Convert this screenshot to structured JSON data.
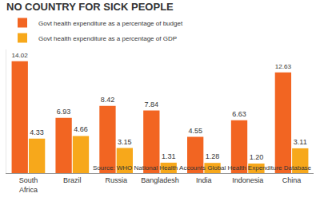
{
  "chart_data": {
    "type": "bar",
    "title": "NO COUNTRY FOR SICK PEOPLE",
    "categories": [
      "South Africa",
      "Brazil",
      "Russia",
      "Bangladesh",
      "India",
      "Indonesia",
      "China"
    ],
    "series": [
      {
        "name": "Govt health expenditure as a percentage of budget",
        "color": "#f26522",
        "values": [
          14.02,
          6.93,
          8.42,
          7.84,
          4.55,
          6.63,
          12.63
        ],
        "value_labels": [
          "14.02",
          "6.93",
          "8.42",
          "7.84",
          "4.55",
          "6.63",
          "12.63"
        ]
      },
      {
        "name": "Govt health expenditure as a percentage of GDP",
        "color": "#f7a81b",
        "values": [
          4.33,
          4.66,
          3.15,
          1.31,
          1.28,
          1.2,
          3.11
        ],
        "value_labels": [
          "4.33",
          "4.66",
          "3.15",
          "1.31",
          "1.28",
          "1.20",
          "3.11"
        ]
      }
    ],
    "ylim": [
      0,
      15.5
    ],
    "yticks": [],
    "grid": false,
    "legend": "top left",
    "data_labels": true,
    "tick_labels": "x",
    "annotations": [
      "Source: WHO National Health Accounts Global Health Expenditure Database"
    ]
  }
}
